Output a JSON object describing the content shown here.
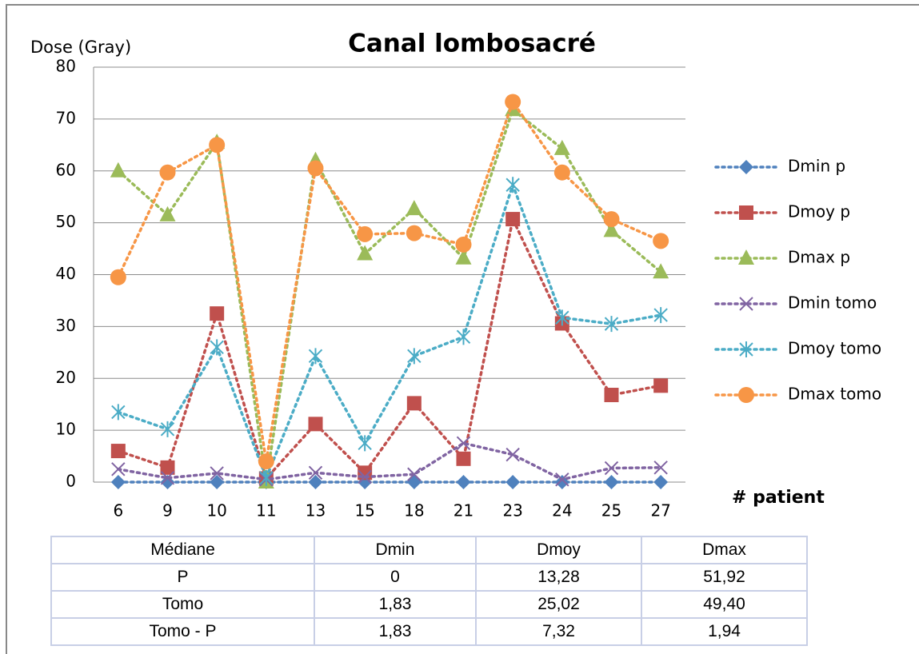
{
  "chart_data": {
    "type": "line",
    "title": "Canal lombosacré",
    "y_label": "Dose (Gray)",
    "x_label": "# patient",
    "categories": [
      "6",
      "9",
      "10",
      "11",
      "13",
      "15",
      "18",
      "21",
      "23",
      "24",
      "25",
      "27"
    ],
    "series": [
      {
        "name": "Dmin p",
        "color": "#4f81bd",
        "marker": "diamond",
        "values": [
          0,
          0,
          0,
          0,
          0,
          0,
          0,
          0,
          0,
          0,
          0,
          0
        ]
      },
      {
        "name": "Dmoy p",
        "color": "#c0504d",
        "marker": "square",
        "values": [
          6,
          2.8,
          32.5,
          0.7,
          11.2,
          1.8,
          15.2,
          4.5,
          50.7,
          30.6,
          16.8,
          18.6
        ]
      },
      {
        "name": "Dmax p",
        "color": "#9bbb59",
        "marker": "triangle",
        "values": [
          60,
          51.5,
          65.5,
          0,
          62,
          44,
          52.7,
          43.2,
          71.8,
          64.3,
          48.5,
          40.5
        ]
      },
      {
        "name": "Dmin tomo",
        "color": "#8064a2",
        "marker": "x",
        "values": [
          2.5,
          0.8,
          1.7,
          0.5,
          1.8,
          1,
          1.5,
          7.5,
          5.3,
          0.5,
          2.7,
          2.8
        ]
      },
      {
        "name": "Dmoy tomo",
        "color": "#4bacc6",
        "marker": "star",
        "values": [
          13.5,
          10.2,
          26,
          0.8,
          24.3,
          7.5,
          24.3,
          28,
          57.3,
          31.7,
          30.5,
          32.2
        ]
      },
      {
        "name": "Dmax tomo",
        "color": "#f79646",
        "marker": "circle",
        "values": [
          39.5,
          59.7,
          65,
          4,
          60.5,
          47.8,
          48,
          45.8,
          73.3,
          59.7,
          50.7,
          46.5
        ]
      }
    ],
    "ylim": [
      0,
      80
    ],
    "yticks": [
      0,
      10,
      20,
      30,
      40,
      50,
      60,
      70,
      80
    ],
    "grid": true,
    "legend": "right"
  },
  "table": {
    "header": [
      "Médiane",
      "Dmin",
      "Dmoy",
      "Dmax"
    ],
    "rows": [
      [
        "P",
        "0",
        "13,28",
        "51,92"
      ],
      [
        "Tomo",
        "1,83",
        "25,02",
        "49,40"
      ],
      [
        "Tomo - P",
        "1,83",
        "7,32",
        "1,94"
      ]
    ]
  }
}
